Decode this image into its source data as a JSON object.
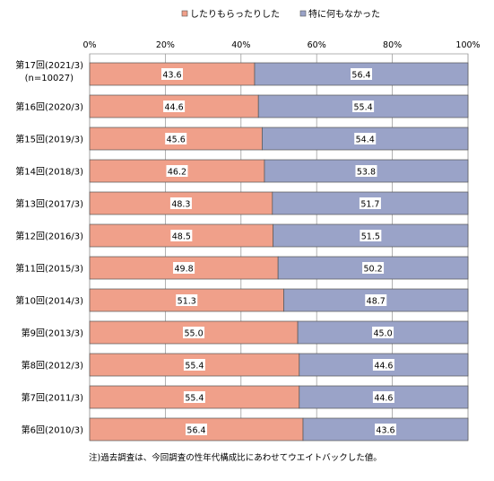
{
  "chart_data": {
    "type": "bar",
    "orientation": "horizontal",
    "stacked": true,
    "categories": [
      "第17回(2021/3)\n(n=10027)",
      "第16回(2020/3)",
      "第15回(2019/3)",
      "第14回(2018/3)",
      "第13回(2017/3)",
      "第12回(2016/3)",
      "第11回(2015/3)",
      "第10回(2014/3)",
      "第9回(2013/3)",
      "第8回(2012/3)",
      "第7回(2011/3)",
      "第6回(2010/3)"
    ],
    "series": [
      {
        "name": "したりもらったりした",
        "color": "#f0a08a",
        "values": [
          43.6,
          44.6,
          45.6,
          46.2,
          48.3,
          48.5,
          49.8,
          51.3,
          55.0,
          55.4,
          55.4,
          56.4
        ]
      },
      {
        "name": "特に何もなかった",
        "color": "#9aa3c8",
        "values": [
          56.4,
          55.4,
          54.4,
          53.8,
          51.7,
          51.5,
          50.2,
          48.7,
          45.0,
          44.6,
          44.6,
          43.6
        ]
      }
    ],
    "xlim": [
      0,
      100
    ],
    "xticks": [
      "0%",
      "20%",
      "40%",
      "60%",
      "80%",
      "100%"
    ],
    "grid": true,
    "legend_position": "top",
    "note": "注)過去調査は、今回調査の性年代構成比にあわせてウエイトバックした値。"
  }
}
